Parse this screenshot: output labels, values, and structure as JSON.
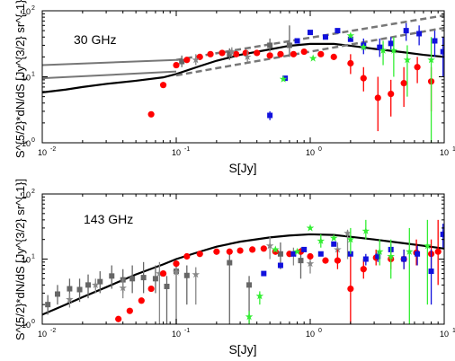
{
  "chart_data": [
    {
      "type": "scatter",
      "annotation": "30 GHz",
      "xlabel": "S[Jy]",
      "ylabel": "S^{5/2}*dN/dS [Jy^{3/2} sr^{-1}]",
      "xscale": "log",
      "yscale": "log",
      "xlim": [
        0.01,
        10
      ],
      "ylim": [
        1,
        100
      ],
      "xticks": [
        {
          "v": 0.01,
          "l": "10"
        },
        {
          "v": 0.1,
          "l": "10"
        },
        {
          "v": 1,
          "l": "10"
        },
        {
          "v": 10,
          "l": "10"
        }
      ],
      "xtick_exp": [
        "-2",
        "-1",
        "0",
        "1"
      ],
      "yticks": [
        {
          "v": 1,
          "l": "10"
        },
        {
          "v": 10,
          "l": "10"
        },
        {
          "v": 100,
          "l": "10"
        }
      ],
      "ytick_exp": [
        "0",
        "1",
        "2"
      ],
      "series": [
        {
          "marker": "line",
          "color": "#000000",
          "width": 2.2,
          "x": [
            0.01,
            0.015,
            0.02,
            0.03,
            0.05,
            0.08,
            0.1,
            0.15,
            0.2,
            0.3,
            0.5,
            0.7,
            1.0,
            1.5,
            2.0,
            3.0,
            5.0,
            7.0,
            10.0
          ],
          "y": [
            5.8,
            6.4,
            7.0,
            7.8,
            8.7,
            9.8,
            11.0,
            14.5,
            17.5,
            21.5,
            26.0,
            29.5,
            31.5,
            31.5,
            29.5,
            26.5,
            23.5,
            21.5,
            20.0
          ]
        },
        {
          "marker": "line",
          "color": "#777777",
          "width": 2,
          "x": [
            0.01,
            0.1
          ],
          "y": [
            15,
            18
          ]
        },
        {
          "marker": "line",
          "color": "#777777",
          "width": 2,
          "x": [
            0.01,
            0.1
          ],
          "y": [
            9.5,
            12
          ]
        },
        {
          "marker": "line",
          "color": "#777777",
          "width": 2.5,
          "dash": "7,4",
          "x": [
            0.1,
            10
          ],
          "y": [
            18,
            85
          ]
        },
        {
          "marker": "line",
          "color": "#777777",
          "width": 2.5,
          "dash": "7,4",
          "x": [
            0.1,
            10
          ],
          "y": [
            10.5,
            55
          ]
        },
        {
          "marker": "square",
          "color": "#666666",
          "x": [
            0.11,
            0.25,
            0.5,
            0.7
          ],
          "y": [
            17,
            22,
            30,
            30
          ],
          "err": [
            [
              14,
              21
            ],
            [
              18,
              27
            ],
            [
              24,
              38
            ],
            [
              20,
              60
            ]
          ]
        },
        {
          "marker": "circle",
          "color": "#ff0000",
          "x": [
            0.065,
            0.08,
            0.1,
            0.12,
            0.15,
            0.18,
            0.22,
            0.28,
            0.33,
            0.4,
            0.5,
            0.6,
            0.75,
            0.9,
            1.2,
            1.5,
            2.0,
            2.5,
            3.2,
            4.0,
            5.0,
            6.3,
            8.0
          ],
          "y": [
            2.7,
            7.5,
            15,
            18,
            20,
            22,
            23,
            22,
            23,
            23,
            21,
            22,
            22,
            24,
            22,
            20,
            16,
            9.5,
            4.8,
            5.5,
            8.0,
            14,
            8.5
          ],
          "err": [
            null,
            null,
            null,
            null,
            null,
            null,
            null,
            null,
            null,
            null,
            null,
            null,
            null,
            null,
            null,
            null,
            [
              11,
              22
            ],
            [
              6,
              14
            ],
            [
              1.5,
              10
            ],
            [
              2.5,
              9
            ],
            [
              3.5,
              14
            ],
            [
              8,
              20
            ],
            [
              3,
              14
            ]
          ]
        },
        {
          "marker": "square",
          "color": "#1111dd",
          "x": [
            0.5,
            0.65,
            0.8,
            1.0,
            1.3,
            1.6,
            2.0,
            2.5,
            3.3,
            4.0,
            5.2,
            6.5,
            8.5,
            9.8
          ],
          "y": [
            2.6,
            9.5,
            35,
            47,
            40,
            50,
            37,
            30,
            28,
            32,
            50,
            45,
            35,
            24
          ],
          "err": [
            [
              2.2,
              3.0
            ],
            null,
            null,
            null,
            null,
            null,
            null,
            [
              22,
              38
            ],
            [
              20,
              38
            ],
            [
              25,
              40
            ],
            [
              35,
              65
            ],
            [
              30,
              60
            ],
            [
              20,
              50
            ],
            [
              10,
              40
            ]
          ]
        },
        {
          "marker": "star",
          "color": "#33ee33",
          "x": [
            0.63,
            1.05,
            2.0,
            2.5,
            3.5,
            4.2,
            5.3,
            8.0
          ],
          "y": [
            9.2,
            19,
            42,
            28,
            25,
            25,
            18,
            18
          ],
          "err": [
            null,
            null,
            null,
            null,
            [
              15,
              35
            ],
            [
              10,
              40
            ],
            [
              5,
              30
            ],
            [
              1,
              40
            ]
          ]
        },
        {
          "marker": "star",
          "color": "#888888",
          "x": [
            0.14,
            0.26,
            0.34
          ],
          "y": [
            18,
            24,
            20
          ],
          "err": [
            [
              15,
              22
            ],
            [
              20,
              28
            ],
            [
              17,
              25
            ]
          ]
        }
      ]
    },
    {
      "type": "scatter",
      "annotation": "143 GHz",
      "xlabel": "S[Jy]",
      "ylabel": "S^{5/2}*dN/dS [Jy^{3/2} sr^{-1}]",
      "xscale": "log",
      "yscale": "log",
      "xlim": [
        0.01,
        10
      ],
      "ylim": [
        1,
        100
      ],
      "xticks": [
        {
          "v": 0.01,
          "l": "10"
        },
        {
          "v": 0.1,
          "l": "10"
        },
        {
          "v": 1,
          "l": "10"
        },
        {
          "v": 10,
          "l": "10"
        }
      ],
      "xtick_exp": [
        "-2",
        "-1",
        "0",
        "1"
      ],
      "yticks": [
        {
          "v": 1,
          "l": "10"
        },
        {
          "v": 10,
          "l": "10"
        },
        {
          "v": 100,
          "l": "10"
        }
      ],
      "ytick_exp": [
        "0",
        "1",
        "2"
      ],
      "series": [
        {
          "marker": "line",
          "color": "#000000",
          "width": 2.2,
          "x": [
            0.01,
            0.015,
            0.02,
            0.03,
            0.05,
            0.08,
            0.1,
            0.15,
            0.2,
            0.3,
            0.5,
            0.7,
            1.0,
            1.5,
            2.0,
            3.0,
            5.0,
            7.0,
            10.0
          ],
          "y": [
            1.4,
            2.0,
            2.6,
            3.7,
            5.8,
            8.3,
            10,
            13,
            15.5,
            18.5,
            21.5,
            23,
            24,
            23.5,
            22,
            20,
            17.5,
            16,
            14.5
          ]
        },
        {
          "marker": "square",
          "color": "#666666",
          "x": [
            0.011,
            0.013,
            0.016,
            0.019,
            0.022,
            0.027,
            0.033,
            0.04,
            0.047,
            0.057,
            0.07,
            0.085,
            0.1,
            0.12,
            0.25,
            0.35,
            0.6,
            0.85
          ],
          "y": [
            2.0,
            2.9,
            3.5,
            3.4,
            4.0,
            4.5,
            5.5,
            4.8,
            5.0,
            5.2,
            5.0,
            3.8,
            6.5,
            5.6,
            8.8,
            4.0,
            12,
            9.5
          ],
          "err": [
            [
              1.4,
              2.8
            ],
            [
              2.0,
              4.0
            ],
            [
              2.5,
              5.0
            ],
            [
              2.2,
              5.0
            ],
            [
              2.5,
              5.8
            ],
            [
              3.0,
              6.5
            ],
            [
              3.5,
              8.0
            ],
            [
              3.0,
              7.0
            ],
            [
              3.0,
              8.0
            ],
            [
              3.0,
              9.0
            ],
            [
              3.0,
              8.0
            ],
            [
              1.0,
              5.5
            ],
            [
              1.0,
              9.0
            ],
            [
              2.0,
              8.0
            ],
            [
              1.0,
              12.0
            ],
            [
              1.0,
              5.5
            ],
            [
              7.0,
              18.0
            ],
            [
              5.0,
              15.0
            ]
          ]
        },
        {
          "marker": "star",
          "color": "#888888",
          "x": [
            0.016,
            0.025,
            0.04,
            0.075,
            0.1,
            0.14,
            0.5,
            0.75,
            1.0,
            1.6,
            1.9
          ],
          "y": [
            2.4,
            4.0,
            3.6,
            6.0,
            6.3,
            5.8,
            16,
            12,
            8.5,
            14,
            25
          ],
          "err": [
            [
              1.8,
              3.0
            ],
            [
              3.0,
              5.0
            ],
            [
              2.5,
              5.0
            ],
            [
              1.0,
              9.0
            ],
            [
              1.0,
              9.0
            ],
            [
              2.0,
              7.5
            ],
            [
              10,
              22
            ],
            [
              8,
              15
            ],
            [
              6,
              11
            ],
            [
              10,
              18
            ],
            [
              10,
              28
            ]
          ]
        },
        {
          "marker": "circle",
          "color": "#ff0000",
          "x": [
            0.037,
            0.045,
            0.055,
            0.065,
            0.08,
            0.1,
            0.12,
            0.15,
            0.2,
            0.25,
            0.3,
            0.37,
            0.45,
            0.55,
            0.7,
            0.85,
            1.0,
            1.3,
            1.6,
            2.0,
            2.5,
            3.1,
            4.0,
            5.0,
            6.2,
            8.0,
            9.0
          ],
          "y": [
            1.2,
            1.6,
            2.3,
            3.5,
            6.0,
            8.5,
            11,
            12,
            13,
            13,
            13.5,
            14,
            14.5,
            13,
            12,
            13,
            11,
            9.5,
            9.5,
            3.5,
            7.0,
            10.5,
            10,
            10,
            12.5,
            12,
            13
          ],
          "err": [
            null,
            null,
            null,
            null,
            null,
            null,
            null,
            null,
            null,
            null,
            null,
            null,
            null,
            null,
            null,
            null,
            null,
            null,
            [
              7,
              14
            ],
            [
              1,
              12
            ],
            [
              5,
              10
            ],
            [
              8,
              14
            ],
            [
              7,
              14
            ],
            [
              7,
              14
            ],
            [
              8,
              20
            ],
            [
              6,
              20
            ],
            [
              4,
              40
            ]
          ]
        },
        {
          "marker": "square",
          "color": "#1111dd",
          "x": [
            0.45,
            0.6,
            0.75,
            0.9,
            1.2,
            1.5,
            2.0,
            2.6,
            3.2,
            4.0,
            5.0,
            6.3,
            8.0,
            9.8
          ],
          "y": [
            6.0,
            8.0,
            12,
            14,
            12,
            17,
            12,
            10,
            11,
            14,
            10,
            12,
            6.5,
            24
          ],
          "err": [
            null,
            null,
            null,
            null,
            null,
            null,
            null,
            [
              8,
              12
            ],
            [
              9,
              13
            ],
            [
              11,
              17
            ],
            [
              7,
              14
            ],
            [
              8,
              16
            ],
            [
              2,
              14
            ],
            [
              15,
              35
            ]
          ]
        },
        {
          "marker": "star",
          "color": "#33ee33",
          "x": [
            0.35,
            0.42,
            0.55,
            0.8,
            1.0,
            1.2,
            1.5,
            2.0,
            2.6,
            3.3,
            4.0,
            5.5,
            7.5
          ],
          "y": [
            1.3,
            2.7,
            14,
            13,
            30,
            19,
            21,
            20,
            27,
            13,
            11,
            13,
            16
          ],
          "err": [
            [
              1.0,
              1.6
            ],
            [
              2.0,
              3.2
            ],
            null,
            null,
            null,
            [
              15,
              24
            ],
            null,
            [
              12,
              30
            ],
            [
              20,
              40
            ],
            [
              8,
              20
            ],
            [
              5,
              20
            ],
            [
              1,
              30
            ],
            [
              2,
              40
            ]
          ]
        }
      ]
    }
  ]
}
